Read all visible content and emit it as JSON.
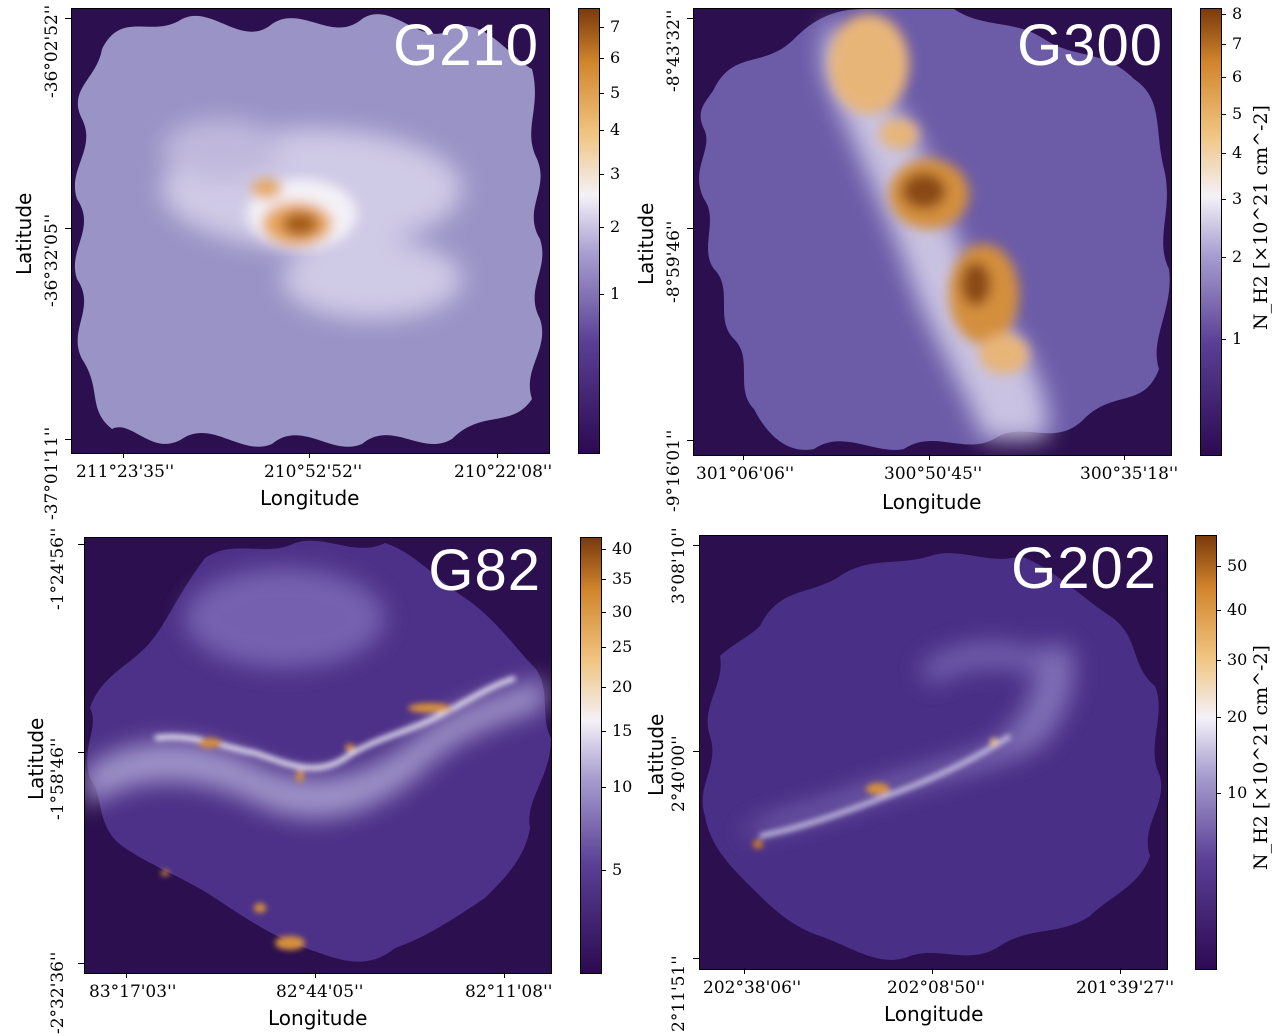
{
  "axis_labels": {
    "x": "Longitude",
    "y": "Latitude"
  },
  "colorbar_label": "N_H2 [×10^21 cm^-2]",
  "colormap": [
    "#2d0a52",
    "#5a3f95",
    "#a89fd0",
    "#f4f1f8",
    "#f0c480",
    "#d1852c",
    "#7a3a0c"
  ],
  "panels": [
    {
      "name": "G210",
      "x_ticks": [
        "211°23'35''",
        "210°52'52''",
        "210°22'08''"
      ],
      "y_ticks": [
        "-36°02'52''",
        "-36°32'05''",
        "-37°01'11''"
      ],
      "colorbar_ticks": [
        "7",
        "6",
        "5",
        "4",
        "3",
        "2",
        "1"
      ]
    },
    {
      "name": "G300",
      "x_ticks": [
        "301°06'06''",
        "300°50'45''",
        "300°35'18''"
      ],
      "y_ticks": [
        "-8°43'32''",
        "-8°59'46''",
        "-9°16'01''"
      ],
      "colorbar_ticks": [
        "8",
        "7",
        "6",
        "5",
        "4",
        "3",
        "2",
        "1"
      ]
    },
    {
      "name": "G82",
      "x_ticks": [
        "83°17'03''",
        "82°44'05''",
        "82°11'08''"
      ],
      "y_ticks": [
        "-1°24'56''",
        "-1°58'46''",
        "-2°32'36''"
      ],
      "colorbar_ticks": [
        "40",
        "35",
        "30",
        "25",
        "20",
        "15",
        "10",
        "5"
      ]
    },
    {
      "name": "G202",
      "x_ticks": [
        "202°38'06''",
        "202°08'50''",
        "201°39'27''"
      ],
      "y_ticks": [
        "3°08'10''",
        "2°40'00''",
        "2°11'51''"
      ],
      "colorbar_ticks": [
        "50",
        "40",
        "30",
        "20",
        "10"
      ]
    }
  ]
}
